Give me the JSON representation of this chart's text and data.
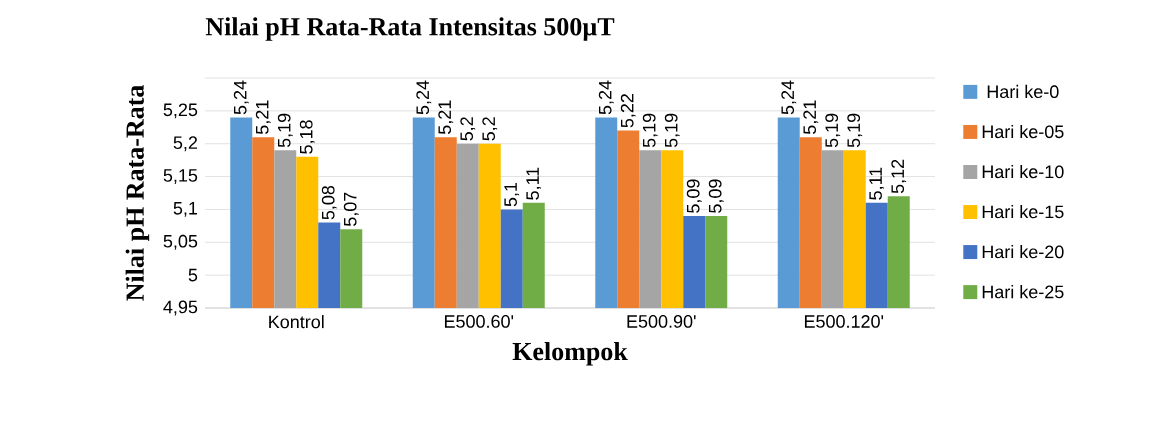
{
  "chart_data": {
    "type": "bar",
    "title": "Nilai pH Rata-Rata Intensitas 500µT",
    "xlabel": "Kelompok",
    "ylabel": "Nilai pH Rata-Rata",
    "categories": [
      "Kontrol",
      "E500.60'",
      "E500.90'",
      "E500.120'"
    ],
    "series": [
      {
        "name": "Hari ke-0",
        "color": "#5b9bd5",
        "values": [
          5.24,
          5.24,
          5.24,
          5.24
        ],
        "value_labels": [
          "5,24",
          "5,24",
          "5,24",
          "5,24"
        ]
      },
      {
        "name": "Hari ke-05",
        "color": "#ed7d31",
        "values": [
          5.21,
          5.21,
          5.22,
          5.21
        ],
        "value_labels": [
          "5,21",
          "5,21",
          "5,22",
          "5,21"
        ]
      },
      {
        "name": "Hari ke-10",
        "color": "#a5a5a5",
        "values": [
          5.19,
          5.2,
          5.19,
          5.19
        ],
        "value_labels": [
          "5,19",
          "5,2",
          "5,19",
          "5,19"
        ]
      },
      {
        "name": "Hari ke-15",
        "color": "#ffc000",
        "values": [
          5.18,
          5.2,
          5.19,
          5.19
        ],
        "value_labels": [
          "5,18",
          "5,2",
          "5,19",
          "5,19"
        ]
      },
      {
        "name": "Hari ke-20",
        "color": "#4472c4",
        "values": [
          5.08,
          5.1,
          5.09,
          5.11
        ],
        "value_labels": [
          "5,08",
          "5,1",
          "5,09",
          "5,11"
        ]
      },
      {
        "name": "Hari ke-25",
        "color": "#70ad47",
        "values": [
          5.07,
          5.11,
          5.09,
          5.12
        ],
        "value_labels": [
          "5,07",
          "5,11",
          "5,09",
          "5,12"
        ]
      }
    ],
    "ylim": [
      4.95,
      5.3
    ],
    "yticks": [
      {
        "value": 4.95,
        "label": "4,95"
      },
      {
        "value": 5.0,
        "label": "5"
      },
      {
        "value": 5.05,
        "label": "5,05"
      },
      {
        "value": 5.1,
        "label": "5,1"
      },
      {
        "value": 5.15,
        "label": "5,15"
      },
      {
        "value": 5.2,
        "label": "5,2"
      },
      {
        "value": 5.25,
        "label": "5,25"
      },
      {
        "value": 5.3,
        "label": null
      }
    ],
    "grid": "y",
    "legend": "right"
  }
}
